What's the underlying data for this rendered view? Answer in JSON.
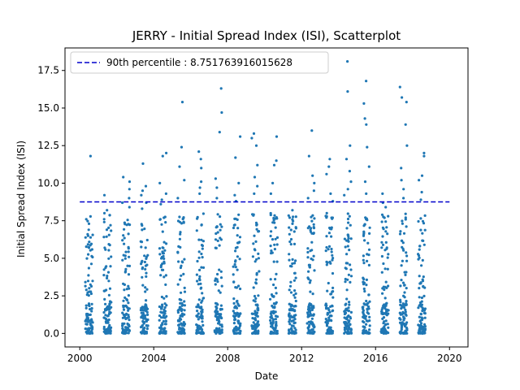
{
  "chart_data": {
    "type": "scatter",
    "title": "JERRY - Initial Spread Index (ISI), Scatterplot",
    "xlabel": "Date",
    "ylabel": "Initial Spread Index (ISI)",
    "xlim": [
      1999.2,
      2021.0
    ],
    "ylim": [
      -0.9,
      19.0
    ],
    "xticks": [
      2000,
      2004,
      2008,
      2012,
      2016,
      2020
    ],
    "xtick_labels": [
      "2000",
      "2004",
      "2008",
      "2012",
      "2016",
      "2020"
    ],
    "yticks": [
      0.0,
      2.5,
      5.0,
      7.5,
      10.0,
      12.5,
      15.0,
      17.5
    ],
    "ytick_labels": [
      "0.0",
      "2.5",
      "5.0",
      "7.5",
      "10.0",
      "12.5",
      "15.0",
      "17.5"
    ],
    "reference_line": {
      "label": "90th percentile : 8.751763916015628",
      "value": 8.751763916015628,
      "x_range": [
        2000.0,
        2020.0
      ],
      "color": "#0000cc",
      "style": "dashed"
    },
    "legend_position": "top-left",
    "point_color": "#1f77b4",
    "seasons": [
      {
        "year": 2000,
        "x_range": [
          2000.3,
          2000.7
        ],
        "max": 11.8,
        "high": [
          7.6,
          7.3,
          6.9,
          6.5
        ]
      },
      {
        "year": 2001,
        "x_range": [
          2001.3,
          2001.7
        ],
        "max": 9.2,
        "high": [
          8.2,
          8.0,
          7.6,
          7.2
        ]
      },
      {
        "year": 2002,
        "x_range": [
          2002.3,
          2002.7
        ],
        "max": 10.4,
        "high": [
          10.1,
          9.6,
          9.0,
          8.7,
          8.4
        ]
      },
      {
        "year": 2003,
        "x_range": [
          2003.3,
          2003.7
        ],
        "max": 11.3,
        "high": [
          9.8,
          9.5,
          9.2,
          8.7,
          8.3
        ]
      },
      {
        "year": 2004,
        "x_range": [
          2004.3,
          2004.7
        ],
        "max": 12.0,
        "high": [
          11.8,
          10.0,
          9.3,
          8.9,
          8.6
        ]
      },
      {
        "year": 2005,
        "x_range": [
          2005.3,
          2005.7
        ],
        "max": 15.4,
        "high": [
          12.4,
          11.1,
          10.2,
          9.0
        ]
      },
      {
        "year": 2006,
        "x_range": [
          2006.3,
          2006.7
        ],
        "max": 12.1,
        "high": [
          11.6,
          11.0,
          10.1,
          9.7,
          9.3
        ]
      },
      {
        "year": 2007,
        "x_range": [
          2007.3,
          2007.7
        ],
        "max": 16.3,
        "high": [
          14.7,
          13.4,
          10.3,
          9.7,
          9.0
        ]
      },
      {
        "year": 2008,
        "x_range": [
          2008.3,
          2008.7
        ],
        "max": 13.1,
        "high": [
          11.7,
          10.0,
          9.2,
          8.8
        ]
      },
      {
        "year": 2009,
        "x_range": [
          2009.3,
          2009.7
        ],
        "max": 13.3,
        "high": [
          13.0,
          12.5,
          11.2,
          10.4,
          9.8,
          9.3
        ]
      },
      {
        "year": 2010,
        "x_range": [
          2010.3,
          2010.7
        ],
        "max": 13.1,
        "high": [
          11.5,
          11.2,
          10.0,
          9.3
        ]
      },
      {
        "year": 2011,
        "x_range": [
          2011.3,
          2011.7
        ],
        "max": 8.2,
        "high": [
          7.3,
          7.0,
          6.6
        ]
      },
      {
        "year": 2012,
        "x_range": [
          2012.3,
          2012.7
        ],
        "max": 13.5,
        "high": [
          11.8,
          10.5,
          10.0,
          9.5,
          9.0
        ]
      },
      {
        "year": 2013,
        "x_range": [
          2013.3,
          2013.7
        ],
        "max": 11.6,
        "high": [
          11.1,
          10.6,
          9.3,
          8.8
        ]
      },
      {
        "year": 2014,
        "x_range": [
          2014.3,
          2014.7
        ],
        "max": 18.1,
        "high": [
          16.1,
          12.5,
          11.6,
          10.8,
          10.1,
          9.6,
          9.2
        ]
      },
      {
        "year": 2015,
        "x_range": [
          2015.3,
          2015.7
        ],
        "max": 16.8,
        "high": [
          15.3,
          14.3,
          13.9,
          12.4,
          11.1,
          10.1,
          9.3
        ]
      },
      {
        "year": 2016,
        "x_range": [
          2016.3,
          2016.7
        ],
        "max": 9.3,
        "high": [
          8.7,
          8.4,
          7.9
        ]
      },
      {
        "year": 2017,
        "x_range": [
          2017.3,
          2017.7
        ],
        "max": 16.4,
        "high": [
          15.7,
          15.4,
          13.9,
          12.5,
          11.0,
          10.2,
          9.6,
          9.0
        ]
      },
      {
        "year": 2018,
        "x_range": [
          2018.3,
          2018.7
        ],
        "max": 12.0,
        "high": [
          11.8,
          10.5,
          10.2,
          9.4,
          8.9
        ]
      }
    ]
  }
}
